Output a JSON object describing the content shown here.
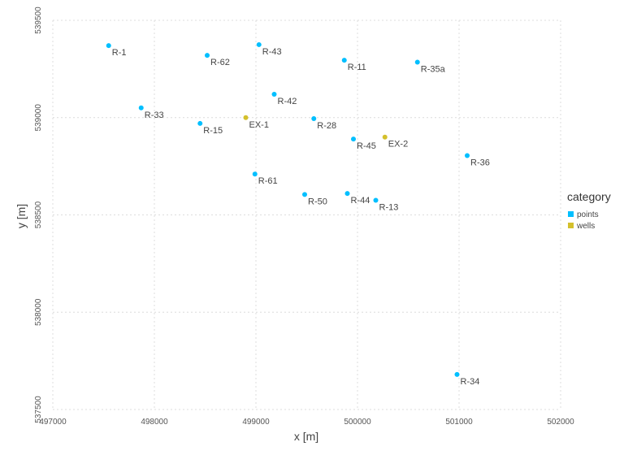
{
  "chart_data": {
    "type": "scatter",
    "title": "",
    "xlabel": "x [m]",
    "ylabel": "y [m]",
    "xlim": [
      497000,
      502000
    ],
    "ylim": [
      537500,
      539500
    ],
    "xticks": [
      497000,
      498000,
      499000,
      500000,
      501000,
      502000
    ],
    "yticks": [
      537500,
      538000,
      538500,
      539000,
      539500
    ],
    "grid": true,
    "legend": {
      "title": "category",
      "placement": "right"
    },
    "series": [
      {
        "name": "points",
        "color": "#00bfff",
        "points": [
          {
            "label": "R-1",
            "x": 497550,
            "y": 539370
          },
          {
            "label": "R-62",
            "x": 498520,
            "y": 539320
          },
          {
            "label": "R-43",
            "x": 499030,
            "y": 539375
          },
          {
            "label": "R-11",
            "x": 499870,
            "y": 539295
          },
          {
            "label": "R-35a",
            "x": 500590,
            "y": 539285
          },
          {
            "label": "R-42",
            "x": 499180,
            "y": 539120
          },
          {
            "label": "R-33",
            "x": 497870,
            "y": 539050
          },
          {
            "label": "R-15",
            "x": 498450,
            "y": 538970
          },
          {
            "label": "R-28",
            "x": 499570,
            "y": 538995
          },
          {
            "label": "R-45",
            "x": 499960,
            "y": 538890
          },
          {
            "label": "R-36",
            "x": 501080,
            "y": 538805
          },
          {
            "label": "R-61",
            "x": 498990,
            "y": 538710
          },
          {
            "label": "R-50",
            "x": 499480,
            "y": 538605
          },
          {
            "label": "R-44",
            "x": 499900,
            "y": 538610
          },
          {
            "label": "R-13",
            "x": 500180,
            "y": 538575
          },
          {
            "label": "R-34",
            "x": 500980,
            "y": 537680
          }
        ]
      },
      {
        "name": "wells",
        "color": "#d4c02c",
        "points": [
          {
            "label": "EX-1",
            "x": 498900,
            "y": 539000
          },
          {
            "label": "EX-2",
            "x": 500270,
            "y": 538900
          }
        ]
      }
    ]
  }
}
